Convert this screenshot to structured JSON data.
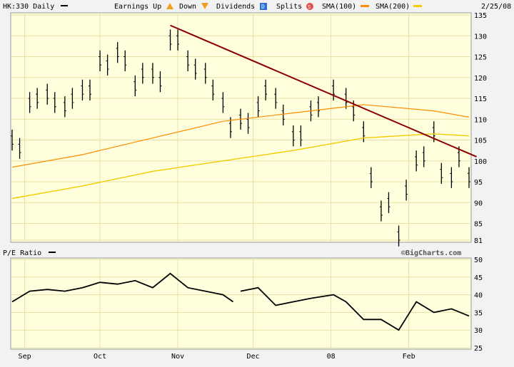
{
  "header": {
    "symbol": "HK:330 Daily",
    "earnings_up": "Earnings Up",
    "down": "Down",
    "dividends": "Dividends",
    "dividends_glyph": "D",
    "splits": "Splits",
    "splits_glyph": "S",
    "sma100": "SMA(100)",
    "sma200": "SMA(200)",
    "date": "2/25/08"
  },
  "colors": {
    "plot_bg": "#ffffdd",
    "grid": "#e6e0a8",
    "price_bar": "#000000",
    "trendline": "#8b0000",
    "sma100": "#ff8c00",
    "sma200": "#f2cc00",
    "up_marker": "#f0a020",
    "dividend": "#2a6fd6",
    "split": "#e05050"
  },
  "lower_panel": {
    "label": "P/E Ratio",
    "watermark": "©BigCharts.com"
  },
  "chart_data": [
    {
      "type": "line",
      "name": "price",
      "ohlc_daily": true,
      "price_axis_ticks": [
        81,
        85,
        90,
        95,
        100,
        105,
        110,
        115,
        120,
        125,
        130,
        135
      ],
      "ylim": [
        81,
        135
      ],
      "x_tick_labels": [
        "Sep",
        "Oct",
        "Nov",
        "Dec",
        "08",
        "Feb"
      ],
      "x_tick_dates": [
        "2007-09-01",
        "2007-10-01",
        "2007-11-01",
        "2007-12-01",
        "2008-01-01",
        "2008-02-01"
      ],
      "date_range": [
        "2007-08-27",
        "2008-02-25"
      ],
      "series": [
        {
          "name": "price",
          "x": [
            "2007-08-27",
            "2007-08-30",
            "2007-09-03",
            "2007-09-06",
            "2007-09-10",
            "2007-09-13",
            "2007-09-17",
            "2007-09-20",
            "2007-09-24",
            "2007-09-27",
            "2007-10-01",
            "2007-10-04",
            "2007-10-08",
            "2007-10-11",
            "2007-10-15",
            "2007-10-18",
            "2007-10-22",
            "2007-10-25",
            "2007-10-29",
            "2007-11-01",
            "2007-11-05",
            "2007-11-08",
            "2007-11-12",
            "2007-11-15",
            "2007-11-19",
            "2007-11-22",
            "2007-11-26",
            "2007-11-29",
            "2007-12-03",
            "2007-12-06",
            "2007-12-10",
            "2007-12-13",
            "2007-12-17",
            "2007-12-20",
            "2007-12-24",
            "2007-12-27",
            "2008-01-02",
            "2008-01-07",
            "2008-01-10",
            "2008-01-14",
            "2008-01-17",
            "2008-01-21",
            "2008-01-24",
            "2008-01-28",
            "2008-01-31",
            "2008-02-04",
            "2008-02-07",
            "2008-02-11",
            "2008-02-14",
            "2008-02-18",
            "2008-02-21",
            "2008-02-25"
          ],
          "values": [
            105,
            103,
            114,
            115,
            116,
            114,
            113,
            115,
            117,
            117,
            124,
            123,
            126,
            124,
            118,
            121,
            121,
            119,
            129,
            129,
            124,
            122,
            121,
            117,
            114,
            108,
            110,
            109,
            113,
            117,
            115,
            111,
            106,
            106,
            112,
            113,
            117,
            115,
            112,
            107,
            96,
            88,
            90,
            82,
            93,
            100,
            101,
            107,
            97,
            96,
            101,
            96
          ]
        },
        {
          "name": "SMA(100)",
          "x": [
            "2007-08-27",
            "2007-09-24",
            "2007-10-22",
            "2007-11-19",
            "2007-12-17",
            "2008-01-14",
            "2008-02-11",
            "2008-02-25"
          ],
          "values": [
            98.5,
            101.5,
            105.5,
            109.5,
            111.5,
            113.5,
            112,
            110.5
          ]
        },
        {
          "name": "SMA(200)",
          "x": [
            "2007-08-27",
            "2007-09-24",
            "2007-10-22",
            "2007-11-19",
            "2007-12-17",
            "2008-01-14",
            "2008-02-11",
            "2008-02-25"
          ],
          "values": [
            91,
            94,
            97.5,
            100,
            102.5,
            105.5,
            106.5,
            106
          ]
        },
        {
          "name": "trendline",
          "x": [
            "2007-10-29",
            "2008-02-28"
          ],
          "values": [
            132.5,
            101
          ]
        }
      ]
    },
    {
      "type": "line",
      "name": "pe_ratio",
      "title": "P/E Ratio",
      "y_ticks": [
        25,
        30,
        35,
        40,
        45,
        50
      ],
      "ylim": [
        25,
        50
      ],
      "date_range": [
        "2007-08-27",
        "2008-02-25"
      ],
      "series": [
        {
          "name": "P/E Ratio",
          "segments": [
            {
              "x": [
                "2007-08-27",
                "2007-09-03",
                "2007-09-10",
                "2007-09-17",
                "2007-09-24",
                "2007-10-01",
                "2007-10-08",
                "2007-10-15",
                "2007-10-22",
                "2007-10-29",
                "2007-11-05",
                "2007-11-12",
                "2007-11-19",
                "2007-11-23"
              ],
              "values": [
                38,
                41,
                41.5,
                41,
                42,
                43.5,
                43,
                44,
                42,
                46,
                42,
                41,
                40,
                38
              ]
            },
            {
              "x": [
                "2007-11-26",
                "2007-12-03",
                "2007-12-10",
                "2007-12-17",
                "2007-12-24",
                "2008-01-02",
                "2008-01-07",
                "2008-01-14",
                "2008-01-21",
                "2008-01-28",
                "2008-02-04",
                "2008-02-11",
                "2008-02-18",
                "2008-02-25"
              ],
              "values": [
                41,
                42,
                37,
                38,
                39,
                40,
                38,
                33,
                33,
                30,
                38,
                35,
                36,
                34
              ]
            }
          ]
        }
      ]
    }
  ]
}
